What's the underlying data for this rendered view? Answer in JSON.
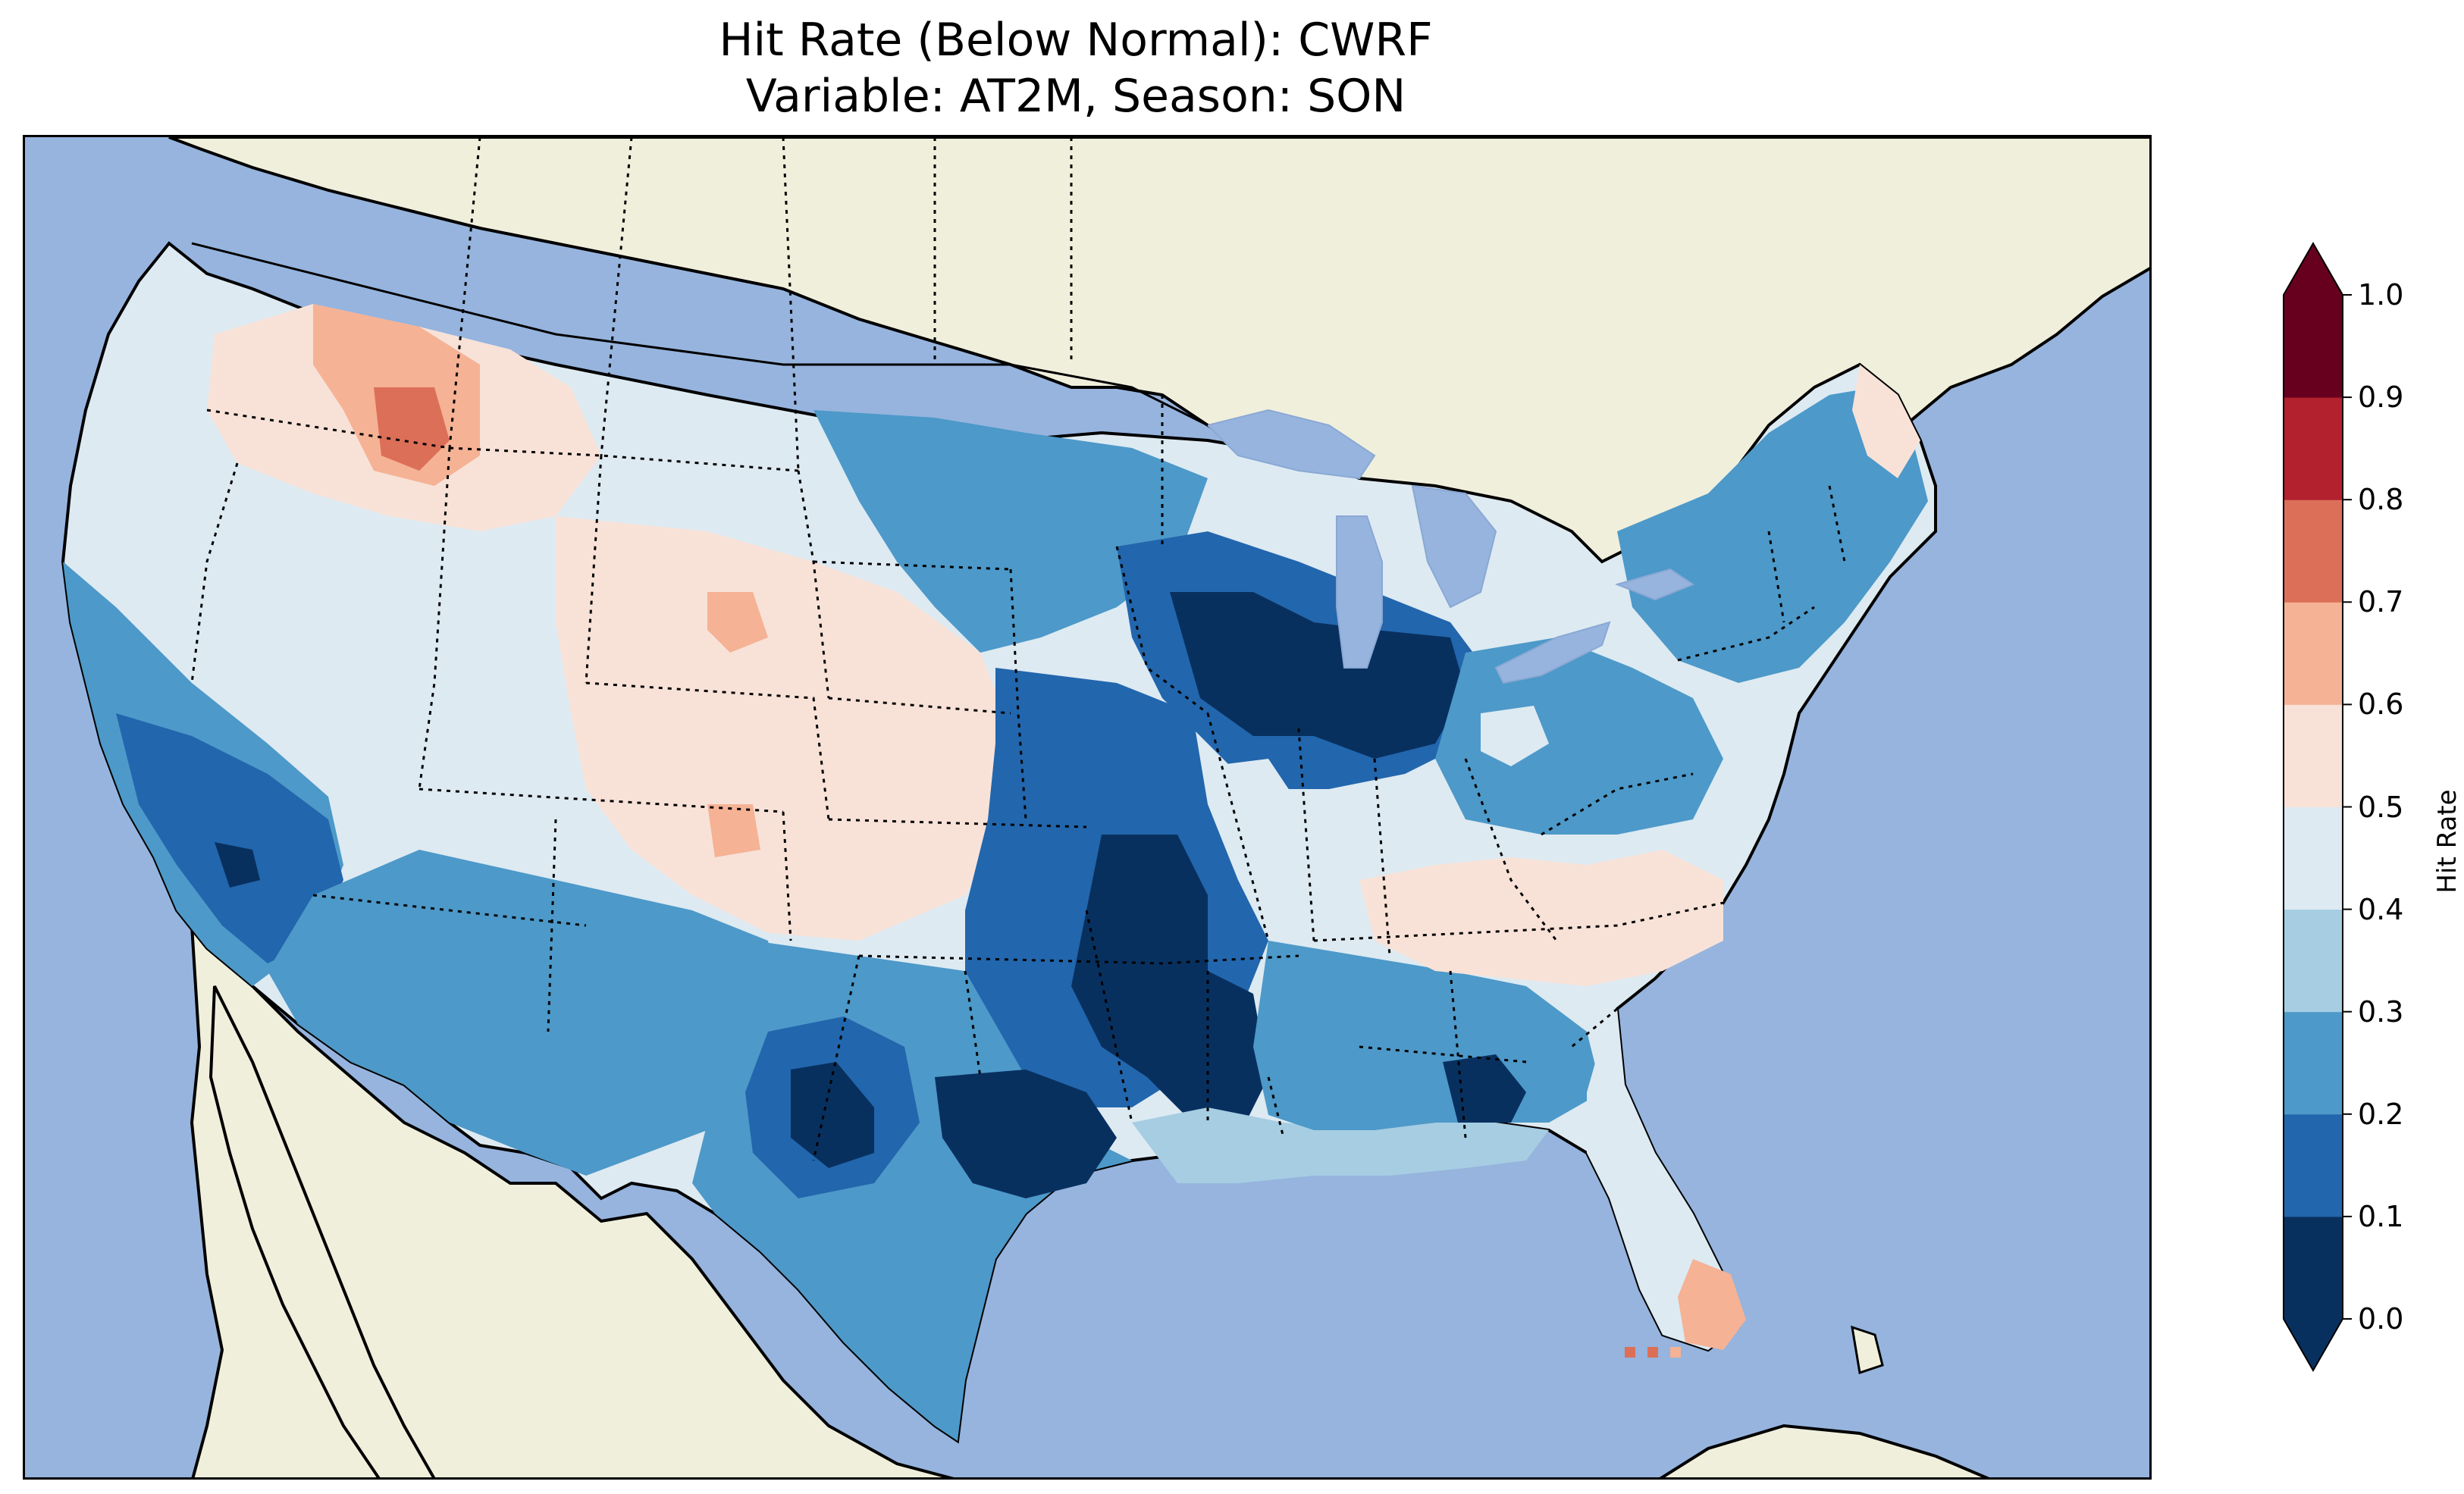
{
  "title": {
    "line1": "Hit Rate (Below Normal): CWRF",
    "line2": "Variable: AT2M, Season: SON"
  },
  "colors": {
    "ocean": "#96b4de",
    "land": "#f0efdc",
    "coast": "#000000",
    "border": "#000000"
  },
  "colorbar": {
    "label": "Hit Rate",
    "extend": "both",
    "levels": [
      "0.0",
      "0.1",
      "0.2",
      "0.3",
      "0.4",
      "0.5",
      "0.6",
      "0.7",
      "0.8",
      "0.9",
      "1.0"
    ],
    "bin_colors": [
      "#08305f",
      "#2266ad",
      "#4d99c9",
      "#a6cde2",
      "#ddeaf2",
      "#f8e2d8",
      "#f5b295",
      "#dc6f58",
      "#b3202e",
      "#67001f"
    ]
  },
  "map_regions": [
    {
      "name": "pacific-northwest-coast",
      "hit_rate": 0.45
    },
    {
      "name": "idaho-montana-highlands",
      "hit_rate": 0.62
    },
    {
      "name": "idaho-hotspot",
      "hit_rate": 0.72
    },
    {
      "name": "great-basin",
      "hit_rate": 0.45
    },
    {
      "name": "california-coast",
      "hit_rate": 0.25
    },
    {
      "name": "southern-nevada",
      "hit_rate": 0.15
    },
    {
      "name": "arizona-new-mexico",
      "hit_rate": 0.25
    },
    {
      "name": "colorado-wyoming",
      "hit_rate": 0.55
    },
    {
      "name": "nebraska-kansas",
      "hit_rate": 0.55
    },
    {
      "name": "dakotas-minnesota",
      "hit_rate": 0.25
    },
    {
      "name": "wisconsin-michigan",
      "hit_rate": 0.05
    },
    {
      "name": "illinois-pocket",
      "hit_rate": 0.45
    },
    {
      "name": "missouri-arkansas",
      "hit_rate": 0.05
    },
    {
      "name": "texas-oklahoma",
      "hit_rate": 0.25
    },
    {
      "name": "north-texas-core",
      "hit_rate": 0.05
    },
    {
      "name": "gulf-coast",
      "hit_rate": 0.35
    },
    {
      "name": "georgia-core",
      "hit_rate": 0.05
    },
    {
      "name": "appalachians",
      "hit_rate": 0.55
    },
    {
      "name": "northeast",
      "hit_rate": 0.25
    },
    {
      "name": "florida-south",
      "hit_rate": 0.65
    }
  ]
}
